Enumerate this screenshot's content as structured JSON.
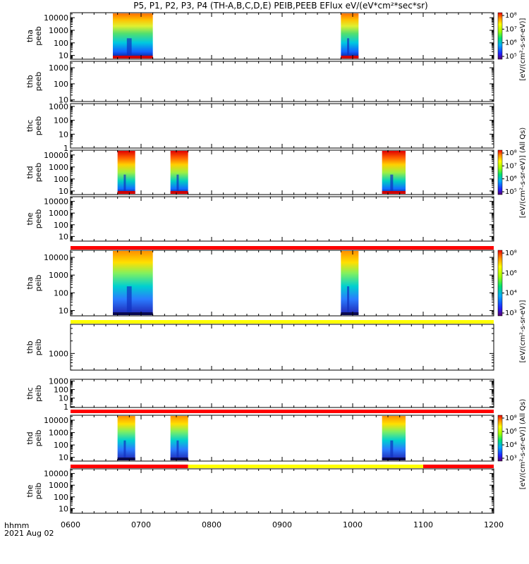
{
  "chart_data": {
    "type": "heatmap",
    "title": "P5, P1, P2, P3, P4 (TH-A,B,C,D,E) PEIB,PEEB EFlux eV/(eV*cm²*sec*sr)",
    "x_time_label": "hhmm",
    "date_label": "2021 Aug 02",
    "x_ticks": [
      "0600",
      "0700",
      "0800",
      "0900",
      "1000",
      "1100",
      "1200"
    ],
    "x_range": [
      "0600",
      "1200"
    ],
    "colorbar_label_units": "[eV/(cm²-s-sr-eV)]",
    "colorbar_label_full": "[eV/(cm²-s-sr-eV)] (All Qs)",
    "colorbars": [
      {
        "panel": "tha-peeb",
        "ticks": [
          "10⁸",
          "10⁷",
          "10⁶",
          "10⁵"
        ]
      },
      {
        "panel": "thd-peeb",
        "ticks": [
          "10⁸",
          "10⁷",
          "10⁶",
          "10⁵"
        ]
      },
      {
        "panel": "tha-peib",
        "ticks": [
          "10⁸",
          "10⁶",
          "10⁴",
          "10³"
        ]
      },
      {
        "panel": "thd-peib",
        "ticks": [
          "10⁸",
          "10⁶",
          "10⁴",
          "10³"
        ]
      }
    ],
    "panels": [
      {
        "id": "tha-peeb",
        "probe": "tha",
        "inst": "peeb",
        "y_ticks": [
          "10000",
          "1000",
          "100",
          "10"
        ],
        "bursts": [
          {
            "start": "0636",
            "end": "0710"
          },
          {
            "start": "0950",
            "end": "1005"
          }
        ]
      },
      {
        "id": "thb-peeb",
        "probe": "thb",
        "inst": "peeb",
        "y_ticks": [
          "1000",
          "100",
          "10"
        ],
        "bursts": []
      },
      {
        "id": "thc-peeb",
        "probe": "thc",
        "inst": "peeb",
        "y_ticks": [
          "1000",
          "100",
          "10",
          "1"
        ],
        "bursts": []
      },
      {
        "id": "thd-peeb",
        "probe": "thd",
        "inst": "peeb",
        "y_ticks": [
          "10000",
          "1000",
          "100",
          "10"
        ],
        "bursts": [
          {
            "start": "0640",
            "end": "0655"
          },
          {
            "start": "0725",
            "end": "0740"
          },
          {
            "start": "1025",
            "end": "1045"
          }
        ]
      },
      {
        "id": "the-peeb",
        "probe": "the",
        "inst": "peeb",
        "y_ticks": [
          "10000",
          "1000",
          "100",
          "10"
        ],
        "bursts": []
      },
      {
        "id": "tha-peib",
        "probe": "tha",
        "inst": "peib",
        "y_ticks": [
          "10000",
          "1000",
          "100",
          "10"
        ],
        "bursts": [
          {
            "start": "0636",
            "end": "0710"
          },
          {
            "start": "0950",
            "end": "1005"
          }
        ]
      },
      {
        "id": "thb-peib",
        "probe": "thb",
        "inst": "peib",
        "y_ticks": [
          "1000"
        ],
        "bursts": []
      },
      {
        "id": "thc-peib",
        "probe": "thc",
        "inst": "peib",
        "y_ticks": [
          "1000",
          "100",
          "10",
          "1"
        ],
        "bursts": []
      },
      {
        "id": "thd-peib",
        "probe": "thd",
        "inst": "peib",
        "y_ticks": [
          "10000",
          "1000",
          "100",
          "10"
        ],
        "bursts": [
          {
            "start": "0640",
            "end": "0655"
          },
          {
            "start": "0725",
            "end": "0740"
          },
          {
            "start": "1025",
            "end": "1045"
          }
        ]
      },
      {
        "id": "the-peib",
        "probe": "the",
        "inst": "peib",
        "y_ticks": [
          "10000",
          "1000",
          "100",
          "10"
        ],
        "bursts": []
      }
    ],
    "status_bars": [
      {
        "after_panel": "the-peeb",
        "segments": [
          {
            "start": "0600",
            "end": "1200",
            "color": "#ff0000"
          }
        ]
      },
      {
        "after_panel": "tha-peib",
        "segments": [
          {
            "start": "0600",
            "end": "1200",
            "color": "#ffff00"
          }
        ]
      },
      {
        "after_panel": "thc-peib",
        "segments": [
          {
            "start": "0600",
            "end": "1200",
            "color": "#ff0000"
          }
        ]
      },
      {
        "after_panel": "thd-peib",
        "segments": [
          {
            "start": "0600",
            "end": "0740",
            "color": "#ff0000"
          },
          {
            "start": "0740",
            "end": "1100",
            "color": "#ffff00"
          },
          {
            "start": "1100",
            "end": "1200",
            "color": "#ff0000"
          }
        ]
      }
    ],
    "grid": false
  }
}
